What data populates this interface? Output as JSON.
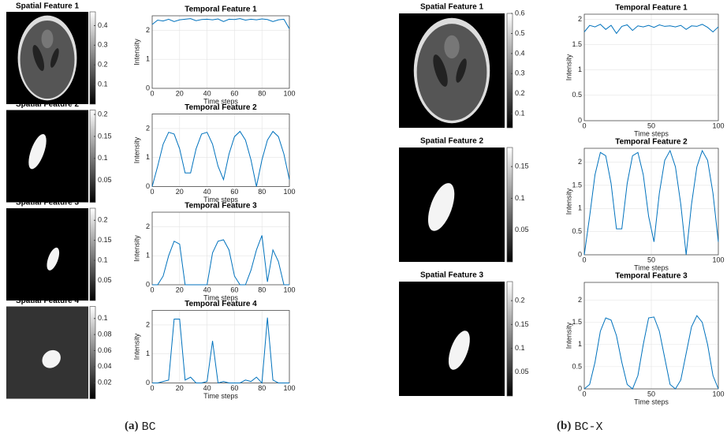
{
  "chart_data": [
    {
      "type": "image",
      "title": "Spatial Feature 1",
      "clim": [
        0,
        0.47
      ],
      "cticks": [
        0.1,
        0.2,
        0.3,
        0.4
      ]
    },
    {
      "type": "line",
      "title": "Temporal Feature 1",
      "xlabel": "Time steps",
      "ylabel": "Intensity",
      "color": "#0072bd",
      "grid": true,
      "x": [
        0,
        4,
        8,
        12,
        16,
        20,
        24,
        28,
        32,
        36,
        40,
        44,
        48,
        52,
        56,
        60,
        64,
        68,
        72,
        76,
        80,
        84,
        88,
        92,
        96,
        100
      ],
      "values": [
        2.2,
        2.35,
        2.32,
        2.38,
        2.3,
        2.36,
        2.38,
        2.4,
        2.33,
        2.37,
        2.38,
        2.36,
        2.39,
        2.3,
        2.38,
        2.37,
        2.4,
        2.35,
        2.38,
        2.36,
        2.39,
        2.37,
        2.3,
        2.36,
        2.38,
        2.05
      ],
      "xlim": [
        0,
        100
      ],
      "ylim": [
        0,
        2.5
      ],
      "xticks": [
        0,
        20,
        40,
        60,
        80,
        100
      ],
      "yticks": [
        0,
        1,
        2
      ]
    },
    {
      "type": "image",
      "title": "Spatial Feature 2",
      "clim": [
        0,
        0.21
      ],
      "cticks": [
        0.05,
        0.1,
        0.15,
        0.2
      ]
    },
    {
      "type": "line",
      "title": "Temporal Feature 2",
      "xlabel": "Time steps",
      "ylabel": "Intensity",
      "color": "#0072bd",
      "grid": true,
      "x": [
        0,
        4,
        8,
        12,
        16,
        20,
        24,
        28,
        32,
        36,
        40,
        44,
        48,
        52,
        56,
        60,
        64,
        68,
        72,
        76,
        80,
        84,
        88,
        92,
        96,
        100
      ],
      "values": [
        0,
        0.7,
        1.46,
        1.87,
        1.81,
        1.3,
        0.47,
        0.47,
        1.3,
        1.81,
        1.87,
        1.46,
        0.7,
        0.24,
        1.12,
        1.72,
        1.9,
        1.6,
        0.92,
        0,
        0.92,
        1.6,
        1.9,
        1.72,
        1.12,
        0.24
      ],
      "xlim": [
        0,
        100
      ],
      "ylim": [
        0,
        2.5
      ],
      "xticks": [
        0,
        20,
        40,
        60,
        80,
        100
      ],
      "yticks": [
        0,
        1,
        2
      ]
    },
    {
      "type": "image",
      "title": "Spatial Feature 3",
      "clim": [
        0,
        0.23
      ],
      "cticks": [
        0.05,
        0.1,
        0.15,
        0.2
      ]
    },
    {
      "type": "line",
      "title": "Temporal Feature 3",
      "xlabel": "Time steps",
      "ylabel": "Intensity",
      "color": "#0072bd",
      "grid": true,
      "x": [
        0,
        4,
        8,
        12,
        16,
        20,
        24,
        28,
        32,
        36,
        40,
        44,
        48,
        52,
        56,
        60,
        64,
        68,
        72,
        76,
        80,
        84,
        88,
        92,
        96,
        100
      ],
      "values": [
        0,
        0,
        0.3,
        1.0,
        1.5,
        1.4,
        0,
        0,
        0,
        0,
        0,
        1.1,
        1.5,
        1.55,
        1.2,
        0.3,
        0,
        0,
        0.5,
        1.2,
        1.7,
        0.1,
        1.2,
        0.8,
        0,
        0
      ],
      "xlim": [
        0,
        100
      ],
      "ylim": [
        0,
        2.5
      ],
      "xticks": [
        0,
        20,
        40,
        60,
        80,
        100
      ],
      "yticks": [
        0,
        1,
        2
      ]
    },
    {
      "type": "image",
      "title": "Spatial Feature 4",
      "clim": [
        0,
        0.115
      ],
      "cticks": [
        0.02,
        0.04,
        0.06,
        0.08,
        0.1
      ]
    },
    {
      "type": "line",
      "title": "Temporal Feature 4",
      "xlabel": "Time steps",
      "ylabel": "Intensity",
      "color": "#0072bd",
      "grid": true,
      "x": [
        0,
        4,
        8,
        12,
        16,
        20,
        24,
        28,
        32,
        36,
        40,
        44,
        48,
        52,
        56,
        60,
        64,
        68,
        72,
        76,
        80,
        84,
        88,
        92,
        96,
        100
      ],
      "values": [
        0,
        0,
        0.05,
        0.1,
        2.2,
        2.2,
        0.1,
        0.2,
        0,
        0,
        0.05,
        1.45,
        0,
        0.05,
        0,
        0,
        0,
        0.1,
        0.05,
        0.2,
        0,
        2.25,
        0.1,
        0,
        0,
        0
      ],
      "xlim": [
        0,
        100
      ],
      "ylim": [
        0,
        2.5
      ],
      "xticks": [
        0,
        20,
        40,
        60,
        80,
        100
      ],
      "yticks": [
        0,
        1,
        2
      ]
    },
    {
      "type": "image",
      "title": "Spatial Feature 1",
      "clim": [
        0.03,
        0.6
      ],
      "cticks": [
        0.1,
        0.2,
        0.3,
        0.4,
        0.5,
        0.6
      ]
    },
    {
      "type": "line",
      "title": "Temporal Feature 1",
      "xlabel": "Time steps",
      "ylabel": "Intensity",
      "color": "#0072bd",
      "grid": true,
      "x": [
        0,
        4,
        8,
        12,
        16,
        20,
        24,
        28,
        32,
        36,
        40,
        44,
        48,
        52,
        56,
        60,
        64,
        68,
        72,
        76,
        80,
        84,
        88,
        92,
        96,
        100
      ],
      "values": [
        1.75,
        1.88,
        1.85,
        1.9,
        1.8,
        1.88,
        1.72,
        1.86,
        1.89,
        1.78,
        1.87,
        1.85,
        1.88,
        1.84,
        1.89,
        1.86,
        1.87,
        1.85,
        1.88,
        1.8,
        1.87,
        1.86,
        1.9,
        1.84,
        1.75,
        1.85
      ],
      "xlim": [
        0,
        100
      ],
      "ylim": [
        0,
        2.1
      ],
      "xticks": [
        0,
        50,
        100
      ],
      "yticks": [
        0,
        0.5,
        1,
        1.5,
        2
      ]
    },
    {
      "type": "image",
      "title": "Spatial Feature 2",
      "clim": [
        0,
        0.18
      ],
      "cticks": [
        0.05,
        0.1,
        0.15
      ]
    },
    {
      "type": "line",
      "title": "Temporal Feature 2",
      "xlabel": "Time steps",
      "ylabel": "Intensity",
      "color": "#0072bd",
      "grid": true,
      "x": [
        0,
        4,
        8,
        12,
        16,
        20,
        24,
        28,
        32,
        36,
        40,
        44,
        48,
        52,
        56,
        60,
        64,
        68,
        72,
        76,
        80,
        84,
        88,
        92,
        96,
        100
      ],
      "values": [
        0,
        0.83,
        1.73,
        2.21,
        2.14,
        1.54,
        0.56,
        0.56,
        1.54,
        2.14,
        2.21,
        1.73,
        0.83,
        0.28,
        1.33,
        2.04,
        2.25,
        1.9,
        1.09,
        0,
        1.09,
        1.9,
        2.25,
        2.04,
        1.33,
        0.28
      ],
      "xlim": [
        0,
        100
      ],
      "ylim": [
        0,
        2.3
      ],
      "xticks": [
        0,
        50,
        100
      ],
      "yticks": [
        0,
        0.5,
        1,
        1.5,
        2
      ]
    },
    {
      "type": "image",
      "title": "Spatial Feature 3",
      "clim": [
        0,
        0.24
      ],
      "cticks": [
        0.05,
        0.1,
        0.15,
        0.2
      ]
    },
    {
      "type": "line",
      "title": "Temporal Feature 3",
      "xlabel": "Time steps",
      "ylabel": "Intensity",
      "color": "#0072bd",
      "grid": true,
      "x": [
        0,
        4,
        8,
        12,
        16,
        20,
        24,
        28,
        32,
        36,
        40,
        44,
        48,
        52,
        56,
        60,
        64,
        68,
        72,
        76,
        80,
        84,
        88,
        92,
        96,
        100
      ],
      "values": [
        0,
        0.1,
        0.6,
        1.3,
        1.6,
        1.55,
        1.2,
        0.6,
        0.1,
        0,
        0.3,
        1.0,
        1.6,
        1.62,
        1.3,
        0.7,
        0.1,
        0,
        0.2,
        0.8,
        1.4,
        1.65,
        1.5,
        1.0,
        0.3,
        0
      ],
      "xlim": [
        0,
        100
      ],
      "ylim": [
        0,
        2.4
      ],
      "xticks": [
        0,
        50,
        100
      ],
      "yticks": [
        0,
        0.5,
        1,
        1.5,
        2
      ]
    }
  ],
  "captions": [
    {
      "label": "(a)",
      "name": "BC"
    },
    {
      "label": "(b)",
      "name": "BC-X"
    }
  ]
}
